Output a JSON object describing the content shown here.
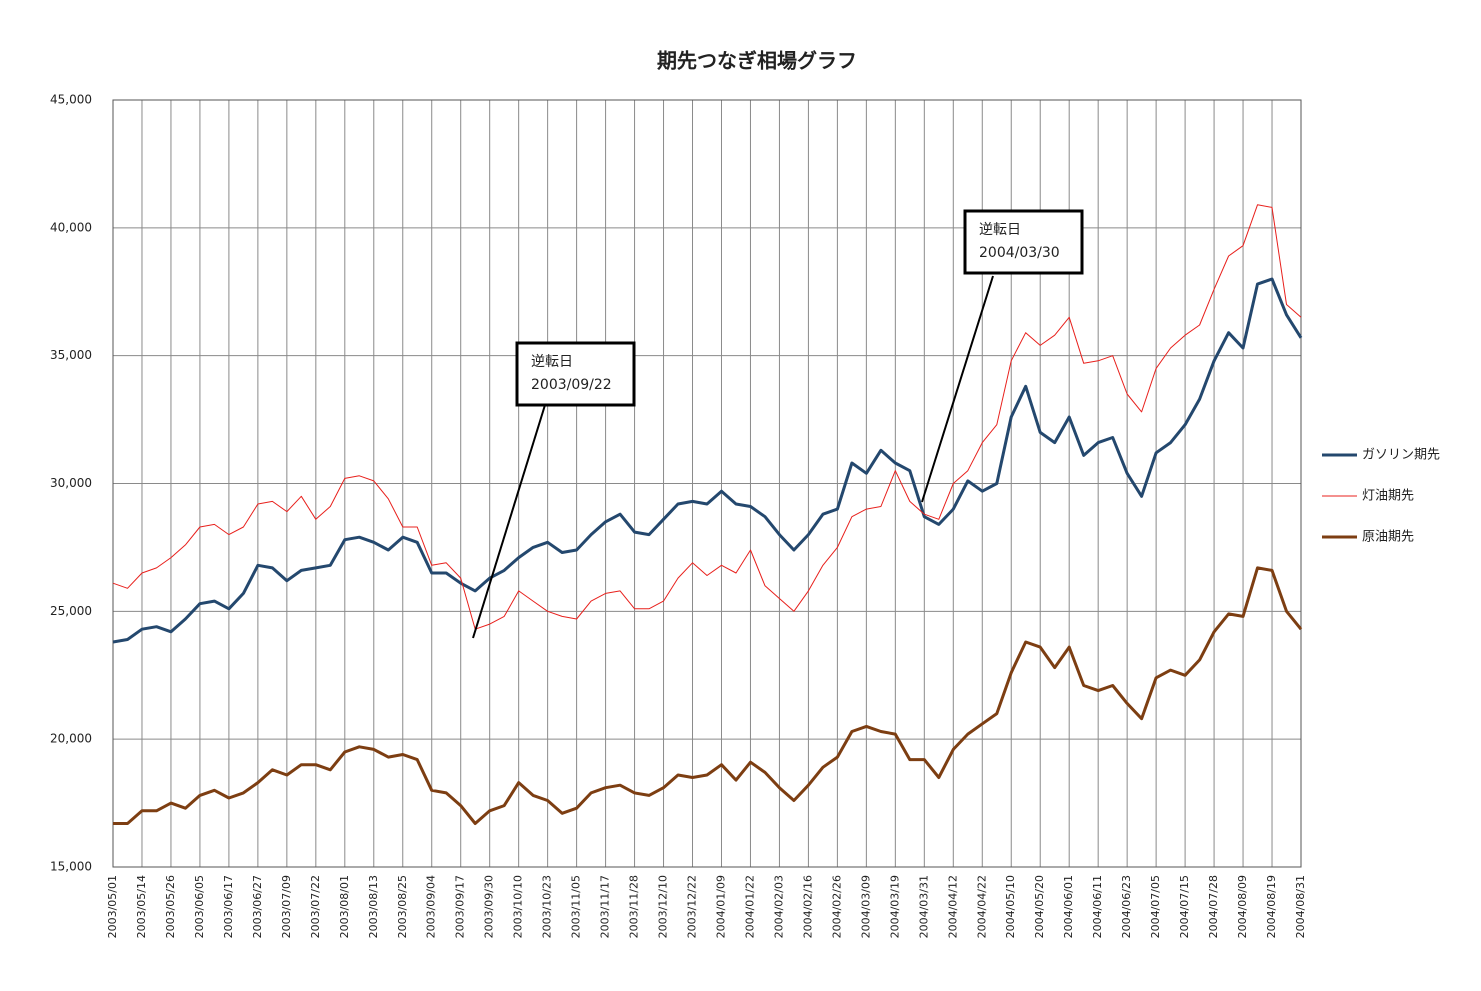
{
  "chart_data": {
    "type": "line",
    "title": "期先つなぎ相場グラフ",
    "categories": [
      "2003/05/01",
      null,
      "2003/05/14",
      null,
      "2003/05/26",
      null,
      "2003/06/05",
      null,
      "2003/06/17",
      null,
      "2003/06/27",
      null,
      "2003/07/09",
      null,
      "2003/07/22",
      null,
      "2003/08/01",
      null,
      "2003/08/13",
      null,
      "2003/08/25",
      null,
      "2003/09/04",
      null,
      "2003/09/17",
      null,
      "2003/09/30",
      null,
      "2003/10/10",
      null,
      "2003/10/23",
      null,
      "2003/11/05",
      null,
      "2003/11/17",
      null,
      "2003/11/28",
      null,
      "2003/12/10",
      null,
      "2003/12/22",
      null,
      "2004/01/09",
      null,
      "2004/01/22",
      null,
      "2004/02/03",
      null,
      "2004/02/16",
      null,
      "2004/02/26",
      null,
      "2004/03/09",
      null,
      "2004/03/19",
      null,
      "2004/03/31",
      null,
      "2004/04/12",
      null,
      "2004/04/22",
      null,
      "2004/05/10",
      null,
      "2004/05/20",
      null,
      "2004/06/01",
      null,
      "2004/06/11",
      null,
      "2004/06/23",
      null,
      "2004/07/05",
      null,
      "2004/07/15",
      null,
      "2004/07/28",
      null,
      "2004/08/09",
      null,
      "2004/08/19",
      null,
      "2004/08/31"
    ],
    "series": [
      {
        "name": "ガソリン期先",
        "color": "#24486e",
        "values": [
          23800,
          23900,
          24300,
          24400,
          24200,
          24700,
          25300,
          25400,
          25100,
          25700,
          26800,
          26700,
          26200,
          26600,
          26700,
          26800,
          27800,
          27900,
          27700,
          27400,
          27900,
          27700,
          26500,
          26500,
          26100,
          25800,
          26300,
          26600,
          27100,
          27500,
          27700,
          27300,
          27400,
          28000,
          28500,
          28800,
          28100,
          28000,
          28600,
          29200,
          29300,
          29200,
          29700,
          29200,
          29100,
          28700,
          28000,
          27400,
          28000,
          28800,
          29000,
          30800,
          30400,
          31300,
          30800,
          30500,
          28700,
          28400,
          29000,
          30100,
          29700,
          30000,
          32600,
          33800,
          32000,
          31600,
          32600,
          31100,
          31600,
          31800,
          30400,
          29500,
          31200,
          31600,
          32300,
          33300,
          34800,
          35900,
          35300,
          37800,
          38000,
          36600,
          35700
        ]
      },
      {
        "name": "灯油期先",
        "color": "#e8201c",
        "values": [
          26100,
          25900,
          26500,
          26700,
          27100,
          27600,
          28300,
          28400,
          28000,
          28300,
          29200,
          29300,
          28900,
          29500,
          28600,
          29100,
          30200,
          30300,
          30100,
          29400,
          28300,
          28300,
          26800,
          26900,
          26300,
          24300,
          24500,
          24800,
          25800,
          25400,
          25000,
          24800,
          24700,
          25400,
          25700,
          25800,
          25100,
          25100,
          25400,
          26300,
          26900,
          26400,
          26800,
          26500,
          27400,
          26000,
          25500,
          25000,
          25800,
          26800,
          27500,
          28700,
          29000,
          29100,
          30500,
          29300,
          28800,
          28600,
          30000,
          30500,
          31600,
          32300,
          34800,
          35900,
          35400,
          35800,
          36500,
          34700,
          34800,
          35000,
          33500,
          32800,
          34500,
          35300,
          35800,
          36200,
          37600,
          38900,
          39300,
          40900,
          40800,
          37000,
          36500
        ]
      },
      {
        "name": "原油期先",
        "color": "#7d3e12",
        "values": [
          16700,
          16700,
          17200,
          17200,
          17500,
          17300,
          17800,
          18000,
          17700,
          17900,
          18300,
          18800,
          18600,
          19000,
          19000,
          18800,
          19500,
          19700,
          19600,
          19300,
          19400,
          19200,
          18000,
          17900,
          17400,
          16700,
          17200,
          17400,
          18300,
          17800,
          17600,
          17100,
          17300,
          17900,
          18100,
          18200,
          17900,
          17800,
          18100,
          18600,
          18500,
          18600,
          19000,
          18400,
          19100,
          18700,
          18100,
          17600,
          18200,
          18900,
          19300,
          20300,
          20500,
          20300,
          20200,
          19200,
          19200,
          18500,
          19600,
          20200,
          20600,
          21000,
          22600,
          23800,
          23600,
          22800,
          23600,
          22100,
          21900,
          22100,
          21400,
          20800,
          22400,
          22700,
          22500,
          23100,
          24200,
          24900,
          24800,
          26700,
          26600,
          25000,
          24300
        ]
      }
    ],
    "ylim": [
      15000,
      45000
    ],
    "yticks": [
      {
        "value": 15000,
        "label": "15,000"
      },
      {
        "value": 20000,
        "label": "20,000"
      },
      {
        "value": 25000,
        "label": "25,000"
      },
      {
        "value": 30000,
        "label": "30,000"
      },
      {
        "value": 35000,
        "label": "35,000"
      },
      {
        "value": 40000,
        "label": "40,000"
      },
      {
        "value": 45000,
        "label": "45,000"
      }
    ],
    "grid": true,
    "legend": "right",
    "annotations": [
      {
        "text": "逆転日",
        "date": "2003/09/22"
      },
      {
        "text": "逆転日",
        "date": "2004/03/30"
      }
    ]
  }
}
